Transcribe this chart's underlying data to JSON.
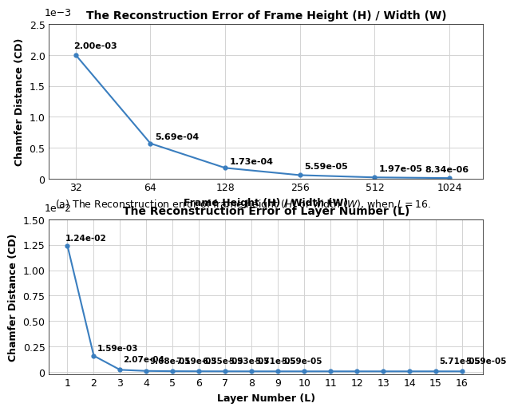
{
  "plot1": {
    "title": "The Reconstruction Error of Frame Height (H) / Width (W)",
    "xlabel": "Frame Height (H) / Width (W)",
    "ylabel": "Chamfer Distance (CD)",
    "x": [
      32,
      64,
      128,
      256,
      512,
      1024
    ],
    "y": [
      0.002,
      0.000569,
      0.000173,
      5.59e-05,
      1.97e-05,
      8.34e-06
    ],
    "labels": [
      "2.00e-03",
      "5.69e-04",
      "1.73e-04",
      "5.59e-05",
      "1.97e-05",
      "8.34e-06"
    ],
    "xtick_labels": [
      "32",
      "64",
      "128",
      "256",
      "512",
      "1024"
    ],
    "ylim": [
      0,
      0.0025
    ],
    "yticks": [
      0,
      0.0005,
      0.001,
      0.0015,
      0.002,
      0.0025
    ],
    "ytick_labels": [
      "0",
      "0.5",
      "1.0",
      "1.5",
      "2.0",
      "2.5"
    ],
    "scale_label": "1e−3",
    "color": "#3a7ebf",
    "label_offsets_x": [
      -2,
      4,
      4,
      4,
      4,
      -22
    ],
    "label_offsets_y": [
      6,
      4,
      4,
      6,
      6,
      6
    ]
  },
  "caption": "(a) The Reconstruction error of frame height ($H$) or width ($W$), when $L = 16$.",
  "plot2": {
    "title": "The Reconstruction Error of Layer Number (L)",
    "xlabel": "Layer Number (L)",
    "ylabel": "Chamfer Distance (CD)",
    "x": [
      1,
      2,
      3,
      4,
      5,
      6,
      7,
      8,
      9,
      10,
      11,
      12,
      13,
      14,
      15,
      16
    ],
    "y": [
      0.0124,
      0.00159,
      0.000207,
      9.68e-05,
      7.19e-05,
      6.35e-05,
      5.93e-05,
      5.71e-05,
      5.59e-05,
      5.59e-05,
      5.59e-05,
      5.59e-05,
      5.59e-05,
      5.59e-05,
      5.71e-05,
      5.59e-05
    ],
    "labels": [
      "1.24e-02",
      "1.59e-03",
      "2.07e-04",
      "9.68e-05",
      "7.19e-05",
      "6.35e-05",
      "5.93e-05",
      "5.71e-05",
      "5.59e-05",
      null,
      null,
      null,
      null,
      null,
      "5.71e-05",
      "5.59e-05"
    ],
    "xtick_labels": [
      "1",
      "2",
      "3",
      "4",
      "5",
      "6",
      "7",
      "8",
      "9",
      "10",
      "11",
      "12",
      "13",
      "14",
      "15",
      "16"
    ],
    "ylim": [
      -0.0002,
      0.015
    ],
    "yticks": [
      0,
      0.0025,
      0.005,
      0.0075,
      0.01,
      0.0125,
      0.015
    ],
    "ytick_labels": [
      "0",
      "0.25",
      "0.50",
      "0.75",
      "1.00",
      "1.25",
      "1.50"
    ],
    "scale_label": "1e−2",
    "color": "#3a7ebf",
    "label_offsets_x": [
      -2,
      3,
      3,
      3,
      3,
      3,
      3,
      3,
      3,
      0,
      0,
      0,
      0,
      0,
      3,
      3
    ],
    "label_offsets_y": [
      5,
      5,
      7,
      7,
      7,
      7,
      7,
      7,
      7,
      0,
      0,
      0,
      0,
      0,
      7,
      7
    ]
  }
}
